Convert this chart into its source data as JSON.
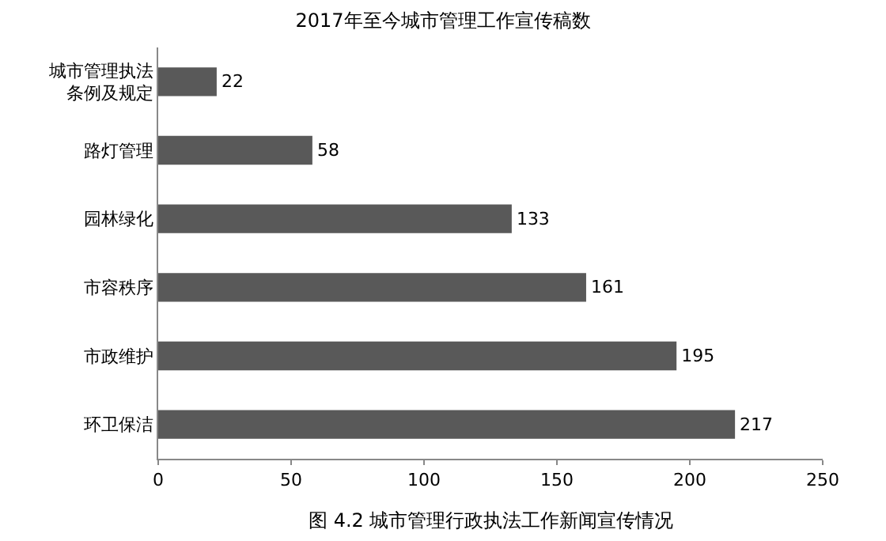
{
  "chart_data": {
    "type": "bar",
    "orientation": "horizontal",
    "title": "2017年至今城市管理工作宣传稿数",
    "categories": [
      "城市管理执法条例及规定",
      "路灯管理",
      "园林绿化",
      "市容秩序",
      "市政维护",
      "环卫保洁"
    ],
    "values": [
      22,
      58,
      133,
      161,
      195,
      217
    ],
    "color": "#595959",
    "xlim": [
      0,
      250
    ],
    "xticks": [
      0,
      50,
      100,
      150,
      200,
      250
    ],
    "grid": false,
    "data_labels": true,
    "annotations": [
      "图 4.2 城市管理行政执法工作新闻宣传情况"
    ]
  }
}
